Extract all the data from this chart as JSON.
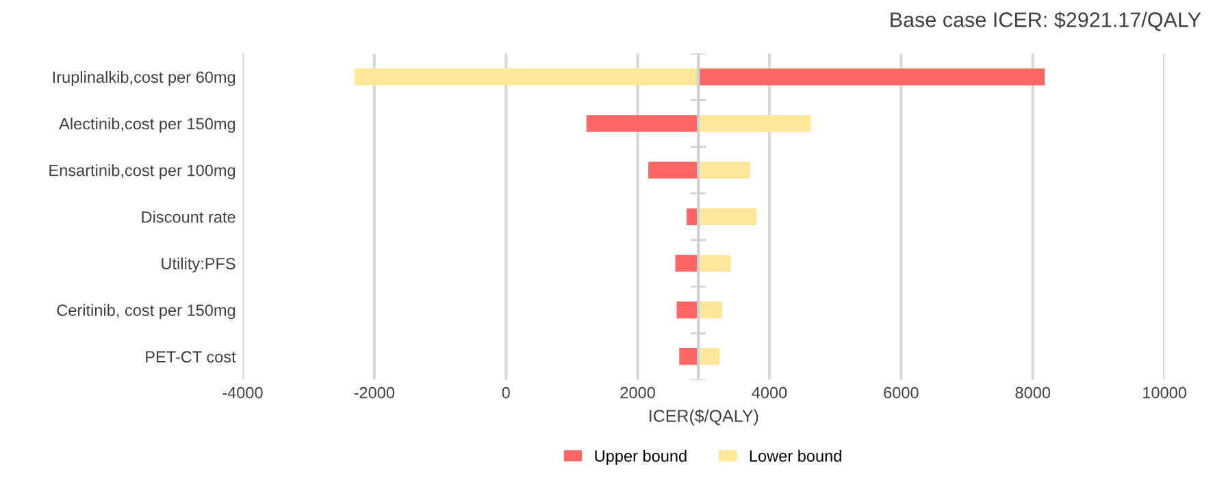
{
  "chart_data": {
    "type": "bar",
    "orientation": "horizontal",
    "title": "Base case ICER: $2921.17/QALY",
    "xlabel": "ICER($/QALY)",
    "categories": [
      "Iruplinalkib,cost per 60mg",
      "Alectinib,cost per 150mg",
      "Ensartinib,cost per 100mg",
      "Discount rate",
      "Utility:PFS",
      "Ceritinib, cost per 150mg",
      "PET-CT cost"
    ],
    "series": [
      {
        "name": "Upper bound",
        "color": "#ff6666",
        "base": [
          2921,
          2921,
          2921,
          2921,
          2921,
          2921,
          2921
        ],
        "values": [
          5260,
          -1700,
          -760,
          -180,
          -350,
          -330,
          -290
        ]
      },
      {
        "name": "Lower bound",
        "color": "#ffe699",
        "base": [
          2921,
          2921,
          2921,
          2921,
          2921,
          2921,
          2921
        ],
        "values": [
          -5220,
          1710,
          790,
          880,
          490,
          360,
          320
        ]
      }
    ],
    "ref_lines": [
      {
        "axis": "x",
        "value": 2921.17,
        "label": null,
        "color": "#d0d0d0"
      }
    ],
    "xlim": [
      -4000,
      10000
    ],
    "xticks": [
      -4000,
      -2000,
      0,
      2000,
      4000,
      6000,
      8000,
      10000
    ],
    "grid": "x",
    "legend": "bottom"
  }
}
